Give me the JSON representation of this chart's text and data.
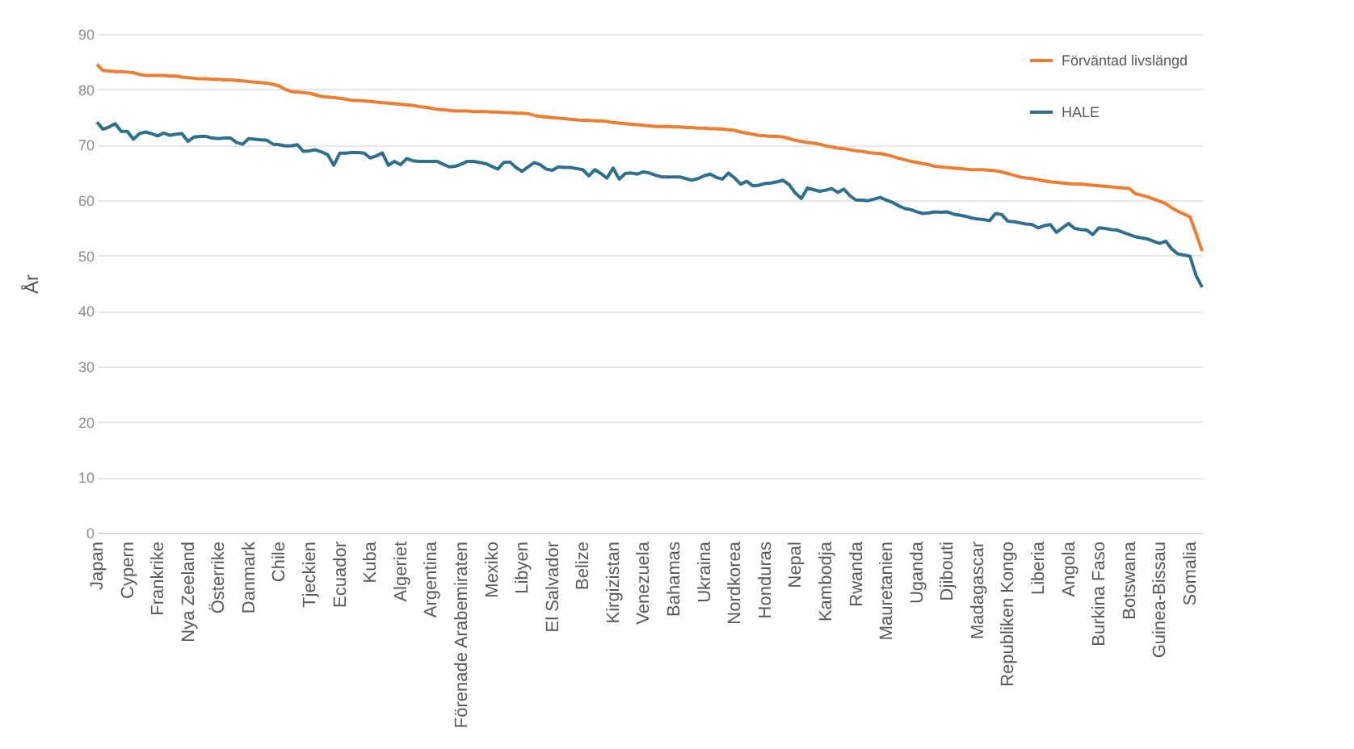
{
  "chart_data": {
    "type": "line",
    "ylabel": "År",
    "ylim": [
      0,
      90
    ],
    "yticks": [
      0,
      10,
      20,
      30,
      40,
      50,
      60,
      70,
      80,
      90
    ],
    "grid": "y",
    "legend": "top right",
    "categories": [
      "Japan",
      null,
      null,
      null,
      null,
      "Cypern",
      null,
      null,
      null,
      null,
      "Frankrike",
      null,
      null,
      null,
      null,
      "Nya Zeeland",
      null,
      null,
      null,
      null,
      "Österrike",
      null,
      null,
      null,
      null,
      "Danmark",
      null,
      null,
      null,
      null,
      "Chile",
      null,
      null,
      null,
      null,
      "Tjeckien",
      null,
      null,
      null,
      null,
      "Ecuador",
      null,
      null,
      null,
      null,
      "Kuba",
      null,
      null,
      null,
      null,
      "Algeriet",
      null,
      null,
      null,
      null,
      "Argentina",
      null,
      null,
      null,
      null,
      "Förenade Arabemiraten",
      null,
      null,
      null,
      null,
      "Mexiko",
      null,
      null,
      null,
      null,
      "Libyen",
      null,
      null,
      null,
      null,
      "El Salvador",
      null,
      null,
      null,
      null,
      "Belize",
      null,
      null,
      null,
      null,
      "Kirgizistan",
      null,
      null,
      null,
      null,
      "Venezuela",
      null,
      null,
      null,
      null,
      "Bahamas",
      null,
      null,
      null,
      null,
      "Ukraina",
      null,
      null,
      null,
      null,
      "Nordkorea",
      null,
      null,
      null,
      null,
      "Honduras",
      null,
      null,
      null,
      null,
      "Nepal",
      null,
      null,
      null,
      null,
      "Kambodja",
      null,
      null,
      null,
      null,
      "Rwanda",
      null,
      null,
      null,
      null,
      "Mauretanien",
      null,
      null,
      null,
      null,
      "Uganda",
      null,
      null,
      null,
      null,
      "Djibouti",
      null,
      null,
      null,
      null,
      "Madagascar",
      null,
      null,
      null,
      null,
      "Republiken Kongo",
      null,
      null,
      null,
      null,
      "Liberia",
      null,
      null,
      null,
      null,
      "Angola",
      null,
      null,
      null,
      null,
      "Burkina Faso",
      null,
      null,
      null,
      null,
      "Botswana",
      null,
      null,
      null,
      null,
      "Guinea-Bissau",
      null,
      null,
      null,
      null,
      "Somalia",
      null,
      null
    ],
    "series": [
      {
        "name": "Förväntad livslängd",
        "color": "#ed7d31",
        "values": [
          84.5,
          83.4,
          83.3,
          83.2,
          83.2,
          83.1,
          83.0,
          82.7,
          82.5,
          82.5,
          82.5,
          82.5,
          82.4,
          82.4,
          82.2,
          82.1,
          82.0,
          81.9,
          81.9,
          81.8,
          81.8,
          81.7,
          81.7,
          81.6,
          81.5,
          81.4,
          81.3,
          81.2,
          81.1,
          80.9,
          80.6,
          80.0,
          79.6,
          79.5,
          79.4,
          79.3,
          79.0,
          78.7,
          78.6,
          78.5,
          78.4,
          78.2,
          78.0,
          78.0,
          77.9,
          77.8,
          77.7,
          77.6,
          77.5,
          77.4,
          77.3,
          77.2,
          77.1,
          76.9,
          76.8,
          76.6,
          76.4,
          76.3,
          76.2,
          76.1,
          76.1,
          76.1,
          76.0,
          76.0,
          76.0,
          75.9,
          75.9,
          75.8,
          75.8,
          75.7,
          75.7,
          75.6,
          75.3,
          75.1,
          75.0,
          74.9,
          74.8,
          74.7,
          74.6,
          74.5,
          74.4,
          74.4,
          74.3,
          74.3,
          74.2,
          74.0,
          73.9,
          73.8,
          73.7,
          73.6,
          73.5,
          73.4,
          73.3,
          73.3,
          73.3,
          73.2,
          73.2,
          73.1,
          73.1,
          73.0,
          73.0,
          72.9,
          72.9,
          72.8,
          72.7,
          72.6,
          72.3,
          72.1,
          71.9,
          71.7,
          71.6,
          71.5,
          71.5,
          71.4,
          71.1,
          70.8,
          70.6,
          70.4,
          70.3,
          70.1,
          69.8,
          69.6,
          69.4,
          69.3,
          69.1,
          68.9,
          68.8,
          68.6,
          68.5,
          68.4,
          68.2,
          67.9,
          67.6,
          67.3,
          67.0,
          66.8,
          66.6,
          66.4,
          66.1,
          66.0,
          65.9,
          65.8,
          65.7,
          65.6,
          65.5,
          65.5,
          65.5,
          65.4,
          65.3,
          65.1,
          64.8,
          64.5,
          64.2,
          64.0,
          63.9,
          63.7,
          63.5,
          63.3,
          63.2,
          63.1,
          63.0,
          62.9,
          62.9,
          62.8,
          62.7,
          62.6,
          62.5,
          62.4,
          62.3,
          62.2,
          62.1,
          61.2,
          60.9,
          60.6,
          60.2,
          59.8,
          59.4,
          58.6,
          58.0,
          57.5,
          57.0,
          54.0,
          50.8
        ]
      },
      {
        "name": "HALE",
        "color": "#2e6f8e",
        "values": [
          74.1,
          72.8,
          73.2,
          73.8,
          72.4,
          72.4,
          71.0,
          72.0,
          72.3,
          72.0,
          71.6,
          72.1,
          71.7,
          71.9,
          72.0,
          70.6,
          71.4,
          71.5,
          71.5,
          71.2,
          71.1,
          71.2,
          71.2,
          70.4,
          70.1,
          71.1,
          71.0,
          70.9,
          70.8,
          70.1,
          70.0,
          69.8,
          69.8,
          70.0,
          68.8,
          68.9,
          69.1,
          68.7,
          68.2,
          66.3,
          68.5,
          68.5,
          68.6,
          68.6,
          68.5,
          67.6,
          68.0,
          68.5,
          66.3,
          67.0,
          66.4,
          67.5,
          67.1,
          67.0,
          67.0,
          67.0,
          67.0,
          66.5,
          66.0,
          66.1,
          66.5,
          67.0,
          67.0,
          66.8,
          66.6,
          66.1,
          65.6,
          66.8,
          66.9,
          65.9,
          65.2,
          66.0,
          66.8,
          66.4,
          65.6,
          65.4,
          66.0,
          65.9,
          65.9,
          65.7,
          65.5,
          64.4,
          65.5,
          64.8,
          64.0,
          65.8,
          63.8,
          64.8,
          64.9,
          64.7,
          65.1,
          64.9,
          64.5,
          64.2,
          64.2,
          64.2,
          64.2,
          63.9,
          63.6,
          63.9,
          64.4,
          64.7,
          64.1,
          63.8,
          64.9,
          64.0,
          62.9,
          63.4,
          62.6,
          62.7,
          63.0,
          63.1,
          63.3,
          63.6,
          62.8,
          61.3,
          60.3,
          62.2,
          61.9,
          61.6,
          61.8,
          62.1,
          61.4,
          62.0,
          60.8,
          60.0,
          60.0,
          59.9,
          60.2,
          60.5,
          60.0,
          59.6,
          59.0,
          58.5,
          58.3,
          57.9,
          57.6,
          57.7,
          57.9,
          57.8,
          57.9,
          57.5,
          57.3,
          57.1,
          56.8,
          56.6,
          56.5,
          56.3,
          57.6,
          57.4,
          56.2,
          56.1,
          55.9,
          55.7,
          55.6,
          55.0,
          55.4,
          55.6,
          54.2,
          55.0,
          55.8,
          54.9,
          54.7,
          54.6,
          53.8,
          55.0,
          54.9,
          54.7,
          54.6,
          54.2,
          53.8,
          53.4,
          53.2,
          53.0,
          52.6,
          52.2,
          52.6,
          51.2,
          50.3,
          50.1,
          49.9,
          46.4,
          44.3
        ]
      }
    ]
  }
}
